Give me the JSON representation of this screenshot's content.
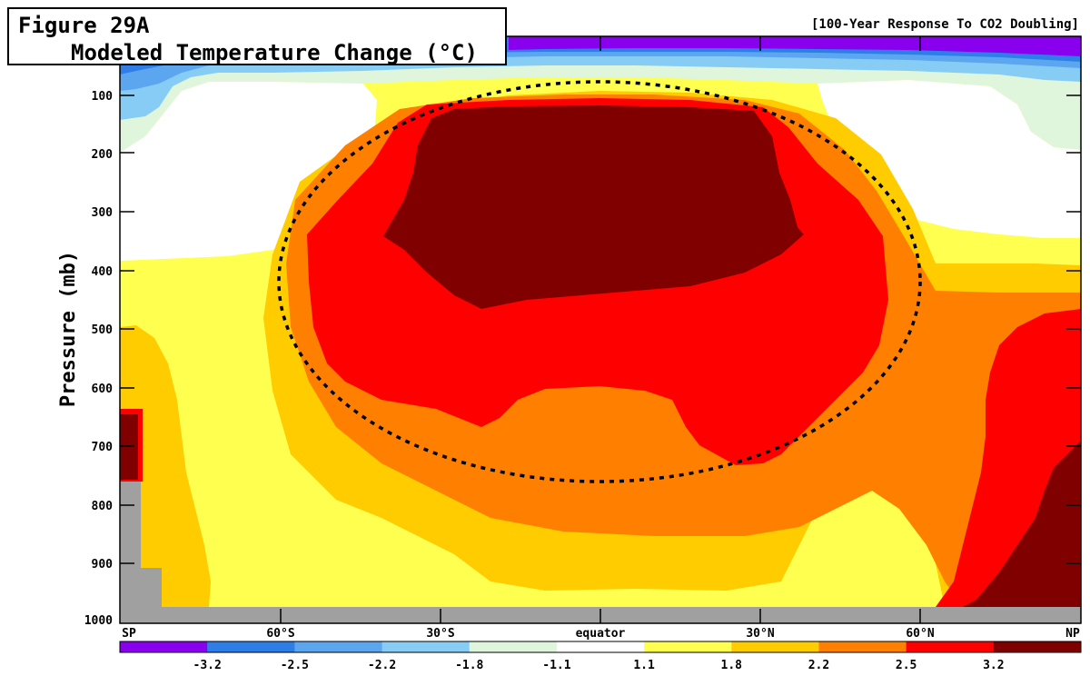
{
  "figure": {
    "label": "Figure 29A",
    "title": "Modeled Temperature Change (°C)",
    "subtitle": "[100-Year Response To CO2 Doubling]"
  },
  "chart_data": {
    "type": "heatmap",
    "title": "Modeled Temperature Change (°C)",
    "subtitle": "[100-Year Response To CO2 Doubling]",
    "xlabel": "",
    "ylabel": "Pressure (mb)",
    "x_ticks": [
      "SP",
      "60°S",
      "30°S",
      "equator",
      "30°N",
      "60°N",
      "NP"
    ],
    "y_ticks": [
      "100",
      "200",
      "300",
      "400",
      "500",
      "600",
      "700",
      "800",
      "900",
      "1000"
    ],
    "y_range_mb": [
      1000,
      30
    ],
    "colorbar": {
      "boundaries": [
        "-3.2",
        "-2.5",
        "-2.2",
        "-1.8",
        "-1.1",
        "1.1",
        "1.8",
        "2.2",
        "2.5",
        "3.2"
      ],
      "colors": [
        "#8800ee",
        "#2f7ee8",
        "#5ca6f0",
        "#87ccf5",
        "#dff5dc",
        "#ffffff",
        "#ffff50",
        "#ffcc00",
        "#ff8000",
        "#ff0000",
        "#800000"
      ]
    },
    "annotation": "dotted ellipse highlighting tropical upper-troposphere warming maximum",
    "max_warming_region": ">3.2 °C between ~120 and ~450 mb over the tropics"
  }
}
